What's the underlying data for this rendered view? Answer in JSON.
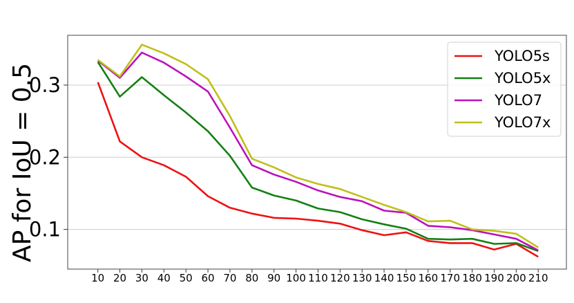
{
  "chart_data": {
    "type": "line",
    "title": "",
    "xlabel": "",
    "ylabel": "AP for IoU = 0.5",
    "x": [
      10,
      20,
      30,
      40,
      50,
      60,
      70,
      80,
      90,
      100,
      110,
      120,
      130,
      140,
      150,
      160,
      170,
      180,
      190,
      200,
      210
    ],
    "xlim": [
      -3.7,
      222.8
    ],
    "ylim": [
      0.045,
      0.369
    ],
    "yticks": [
      0.1,
      0.2,
      0.3
    ],
    "ytick_labels": [
      "0.1",
      "0.2",
      "0.3"
    ],
    "grid": "horizontal",
    "legend": "top-right",
    "series": [
      {
        "name": "YOLO5s",
        "color": "#ee1111",
        "values": [
          0.304,
          0.222,
          0.2,
          0.189,
          0.173,
          0.146,
          0.13,
          0.122,
          0.116,
          0.115,
          0.112,
          0.108,
          0.099,
          0.092,
          0.096,
          0.084,
          0.081,
          0.081,
          0.072,
          0.08,
          0.062
        ]
      },
      {
        "name": "YOLO5x",
        "color": "#138013",
        "values": [
          0.332,
          0.284,
          0.311,
          0.286,
          0.262,
          0.236,
          0.202,
          0.158,
          0.147,
          0.14,
          0.129,
          0.124,
          0.114,
          0.107,
          0.101,
          0.087,
          0.086,
          0.087,
          0.08,
          0.081,
          0.07
        ]
      },
      {
        "name": "YOLO7",
        "color": "#bb11bb",
        "values": [
          0.334,
          0.31,
          0.345,
          0.331,
          0.312,
          0.291,
          0.241,
          0.189,
          0.176,
          0.166,
          0.154,
          0.145,
          0.139,
          0.126,
          0.123,
          0.105,
          0.103,
          0.099,
          0.093,
          0.087,
          0.071
        ]
      },
      {
        "name": "YOLO7x",
        "color": "#bfbf1a",
        "values": [
          0.335,
          0.312,
          0.356,
          0.344,
          0.329,
          0.308,
          0.257,
          0.198,
          0.186,
          0.172,
          0.163,
          0.156,
          0.145,
          0.134,
          0.124,
          0.111,
          0.112,
          0.1,
          0.098,
          0.094,
          0.075
        ]
      }
    ]
  }
}
